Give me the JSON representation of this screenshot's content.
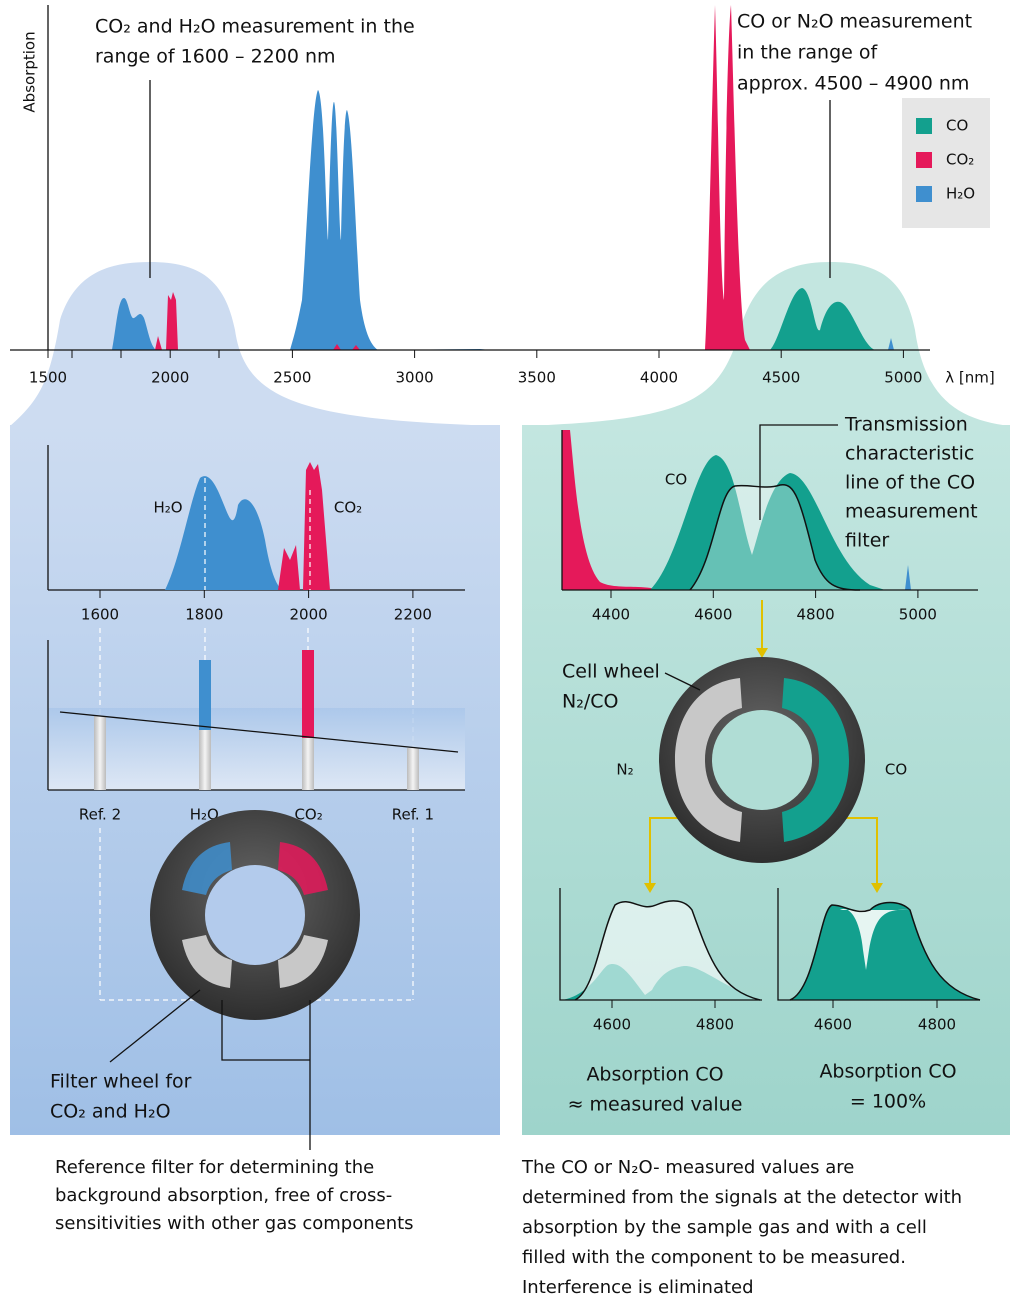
{
  "top_chart": {
    "y_label": "Absorption",
    "x_unit": "λ [nm]",
    "x_ticks": [
      "1500",
      "2000",
      "2500",
      "3000",
      "3500",
      "4000",
      "4500",
      "5000"
    ],
    "annotation_left": [
      "CO₂ and H₂O measurement in the",
      "range of 1600 – 2200 nm"
    ],
    "annotation_right": [
      "CO or N₂O measurement",
      "in the range of",
      "approx. 4500 – 4900 nm"
    ],
    "legend": [
      {
        "name": "CO",
        "color": "#13a08e"
      },
      {
        "name": "CO₂",
        "color": "#e5195a"
      },
      {
        "name": "H₂O",
        "color": "#3f8fcf"
      }
    ]
  },
  "left_panel": {
    "spectrum_labels": [
      "H₂O",
      "CO₂"
    ],
    "x_ticks": [
      "1600",
      "1800",
      "2000",
      "2200"
    ],
    "bar_labels": [
      "Ref. 2",
      "H₂O",
      "CO₂",
      "Ref. 1"
    ],
    "wheel_caption": [
      "Filter wheel for",
      "CO₂ and H₂O"
    ],
    "footnote": [
      "Reference filter for determining the",
      "background absorption, free of cross-",
      "sensitivities with other gas components"
    ]
  },
  "right_panel": {
    "spectrum_label": "CO",
    "filter_caption": [
      "Transmission",
      "characteristic",
      "line of the CO",
      "measurement",
      "filter"
    ],
    "x_ticks": [
      "4400",
      "4600",
      "4800",
      "5000"
    ],
    "wheel_caption": [
      "Cell wheel",
      "N₂/CO"
    ],
    "wheel_labels": [
      "N₂",
      "CO"
    ],
    "small_x_ticks": [
      "4600",
      "4800"
    ],
    "result_left": [
      "Absorption CO",
      "≈ measured value"
    ],
    "result_right": [
      "Absorption CO",
      "= 100%"
    ],
    "footnote": [
      "The CO or N₂O- measured values are",
      "determined from the signals at the detector with",
      "absorption by the sample gas and with a cell",
      "filled with the component to be measured.",
      "Interference is eliminated"
    ]
  }
}
